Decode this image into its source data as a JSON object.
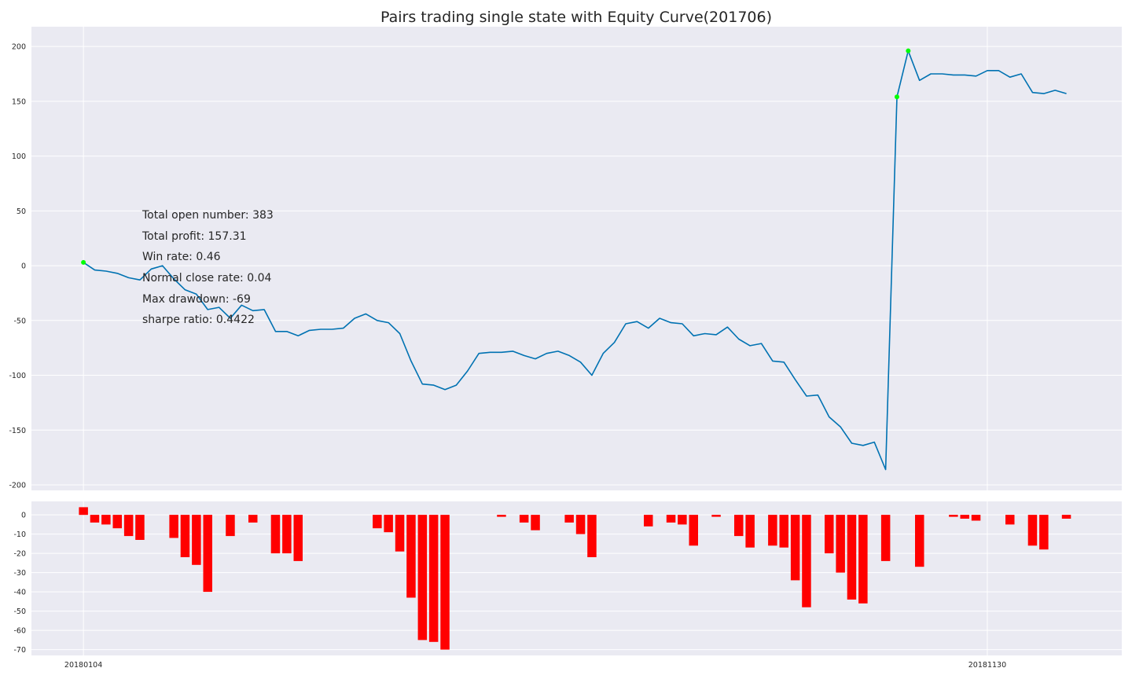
{
  "title": "Pairs trading single state with Equity Curve(201706)",
  "stats": [
    "Total open number: 383",
    "Total profit: 157.31",
    "Win rate: 0.46",
    "Normal close rate: 0.04",
    "Max drawdown: -69",
    "sharpe ratio: 0.4422"
  ],
  "colors": {
    "background": "#eaeaf2",
    "grid": "#ffffff",
    "equity_line": "#0072b2",
    "markers": "#00ff00",
    "drawdown_bars": "#ff0000"
  },
  "x_ticks": [
    {
      "index": 0,
      "label": "20180104"
    },
    {
      "index": 80,
      "label": "20181130"
    }
  ],
  "chart_data": [
    {
      "type": "line",
      "name": "equity-curve",
      "xlim": [
        -4.6,
        91.9
      ],
      "ylim": [
        -205,
        218
      ],
      "yticks": [
        -200,
        -150,
        -100,
        -50,
        0,
        50,
        100,
        150,
        200
      ],
      "grid": true,
      "x": [
        0,
        1,
        2,
        3,
        4,
        5,
        6,
        7,
        8,
        9,
        10,
        11,
        12,
        13,
        14,
        15,
        16,
        17,
        18,
        19,
        20,
        21,
        22,
        23,
        24,
        25,
        26,
        27,
        28,
        29,
        30,
        31,
        32,
        33,
        34,
        35,
        36,
        37,
        38,
        39,
        40,
        41,
        42,
        43,
        44,
        45,
        46,
        47,
        48,
        49,
        50,
        51,
        52,
        53,
        54,
        55,
        56,
        57,
        58,
        59,
        60,
        61,
        62,
        63,
        64,
        65,
        66,
        67,
        68,
        69,
        70,
        71,
        72,
        73,
        74,
        75,
        76,
        77,
        78,
        79,
        80,
        81,
        82,
        83,
        84,
        85,
        86,
        87
      ],
      "y": [
        3,
        -4,
        -5,
        -7,
        -11,
        -13,
        -3,
        0,
        -12,
        -22,
        -26,
        -40,
        -38,
        -48,
        -36,
        -41,
        -40,
        -60,
        -60,
        -64,
        -59,
        -58,
        -58,
        -57,
        -48,
        -44,
        -50,
        -52,
        -62,
        -87,
        -108,
        -109,
        -113,
        -109,
        -96,
        -80,
        -79,
        -79,
        -78,
        -82,
        -85,
        -80,
        -78,
        -82,
        -88,
        -100,
        -80,
        -70,
        -53,
        -51,
        -57,
        -48,
        -52,
        -53,
        -64,
        -62,
        -63,
        -56,
        -67,
        -73,
        -71,
        -87,
        -88,
        -104,
        -119,
        -118,
        -138,
        -147,
        -162,
        -164,
        -161,
        -186,
        154,
        196,
        169,
        175,
        175,
        174,
        174,
        173,
        178,
        178,
        172,
        175,
        158,
        157,
        160,
        157
      ],
      "markers": [
        {
          "x": 0,
          "y": 3
        },
        {
          "x": 72,
          "y": 154
        },
        {
          "x": 73,
          "y": 196
        }
      ],
      "annotations": [
        "Total open number: 383",
        "Total profit: 157.31",
        "Win rate: 0.46",
        "Normal close rate: 0.04",
        "Max drawdown: -69",
        "sharpe ratio: 0.4422"
      ]
    },
    {
      "type": "bar",
      "name": "drawdown",
      "xlim": [
        -4.6,
        91.9
      ],
      "ylim": [
        -73,
        7
      ],
      "yticks": [
        -70,
        -60,
        -50,
        -40,
        -30,
        -20,
        -10,
        0
      ],
      "grid": true,
      "x": [
        0,
        1,
        2,
        3,
        4,
        5,
        8,
        9,
        10,
        11,
        13,
        15,
        17,
        18,
        19,
        26,
        27,
        28,
        29,
        30,
        31,
        32,
        37,
        39,
        40,
        43,
        44,
        45,
        50,
        52,
        53,
        54,
        56,
        58,
        59,
        61,
        62,
        63,
        64,
        66,
        67,
        68,
        69,
        71,
        74,
        77,
        78,
        79,
        82,
        84,
        85,
        87
      ],
      "values": [
        4,
        -4,
        -5,
        -7,
        -11,
        -13,
        -12,
        -22,
        -26,
        -40,
        -11,
        -4,
        -20,
        -20,
        -24,
        -7,
        -9,
        -19,
        -43,
        -65,
        -66,
        -70,
        -1,
        -4,
        -8,
        -4,
        -10,
        -22,
        -6,
        -4,
        -5,
        -16,
        -1,
        -11,
        -17,
        -16,
        -17,
        -34,
        -48,
        -20,
        -30,
        -44,
        -46,
        -24,
        -27,
        -1,
        -2,
        -3,
        -5,
        -16,
        -18,
        -2
      ]
    }
  ]
}
